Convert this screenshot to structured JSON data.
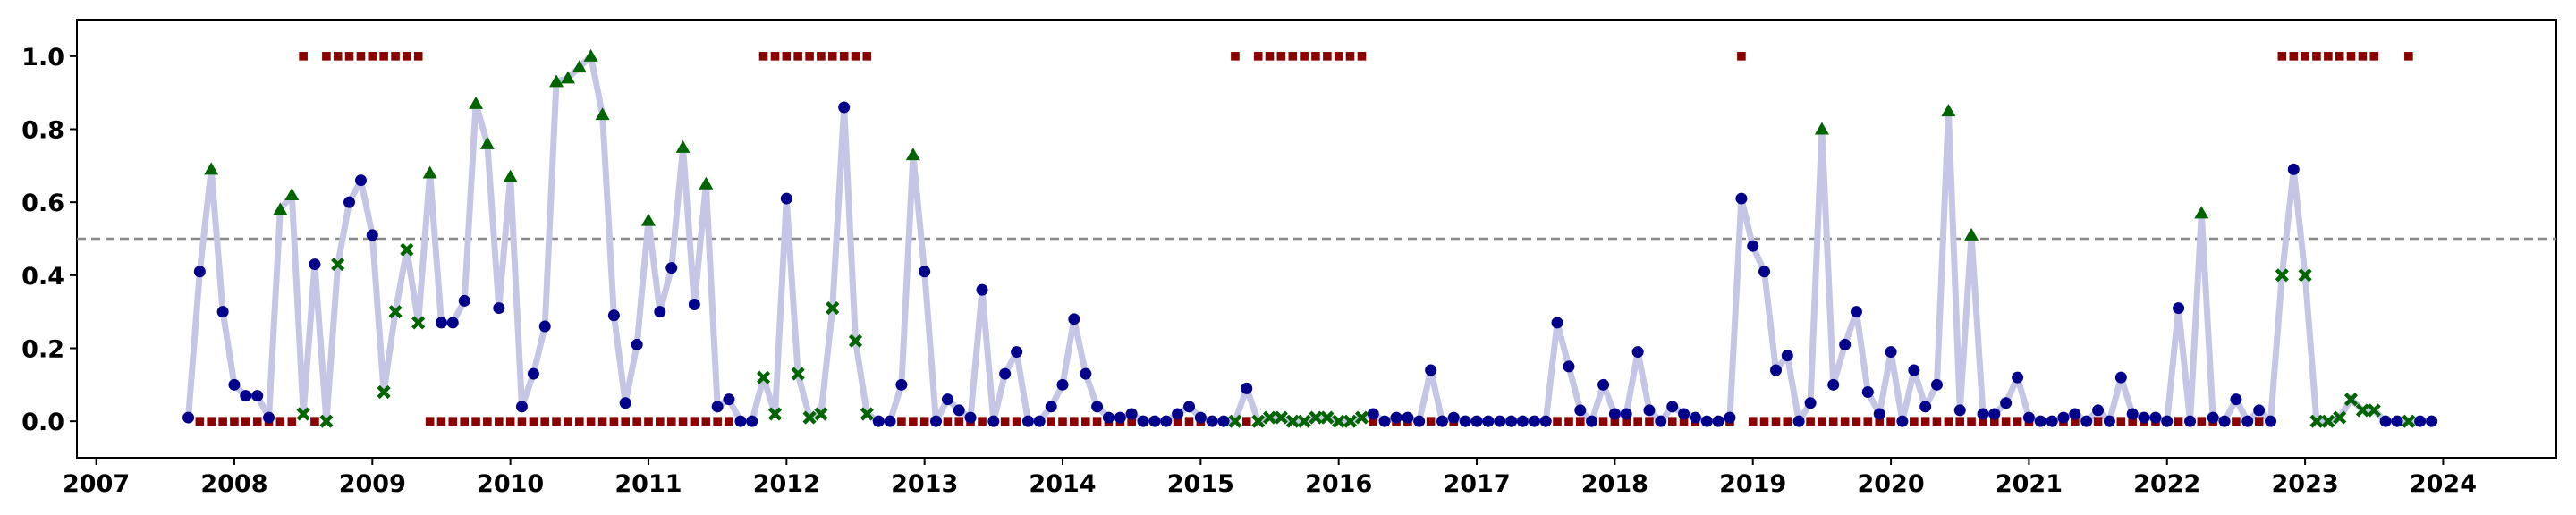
{
  "chart_data": {
    "type": "line",
    "x": [
      2007.667,
      2007.75,
      2007.833,
      2007.917,
      2008.0,
      2008.083,
      2008.167,
      2008.25,
      2008.333,
      2008.417,
      2008.5,
      2008.583,
      2008.667,
      2008.75,
      2008.833,
      2008.917,
      2009.0,
      2009.083,
      2009.167,
      2009.25,
      2009.333,
      2009.417,
      2009.5,
      2009.583,
      2009.667,
      2009.75,
      2009.833,
      2009.917,
      2010.0,
      2010.083,
      2010.167,
      2010.25,
      2010.333,
      2010.417,
      2010.5,
      2010.583,
      2010.667,
      2010.75,
      2010.833,
      2010.917,
      2011.0,
      2011.083,
      2011.167,
      2011.25,
      2011.333,
      2011.417,
      2011.5,
      2011.583,
      2011.667,
      2011.75,
      2011.833,
      2011.917,
      2012.0,
      2012.083,
      2012.167,
      2012.25,
      2012.333,
      2012.417,
      2012.5,
      2012.583,
      2012.667,
      2012.75,
      2012.833,
      2012.917,
      2013.0,
      2013.083,
      2013.167,
      2013.25,
      2013.333,
      2013.417,
      2013.5,
      2013.583,
      2013.667,
      2013.75,
      2013.833,
      2013.917,
      2014.0,
      2014.083,
      2014.167,
      2014.25,
      2014.333,
      2014.417,
      2014.5,
      2014.583,
      2014.667,
      2014.75,
      2014.833,
      2014.917,
      2015.0,
      2015.083,
      2015.167,
      2015.25,
      2015.333,
      2015.417,
      2015.5,
      2015.583,
      2015.667,
      2015.75,
      2015.833,
      2015.917,
      2016.0,
      2016.083,
      2016.167,
      2016.25,
      2016.333,
      2016.417,
      2016.5,
      2016.583,
      2016.667,
      2016.75,
      2016.833,
      2016.917,
      2017.0,
      2017.083,
      2017.167,
      2017.25,
      2017.333,
      2017.417,
      2017.5,
      2017.583,
      2017.667,
      2017.75,
      2017.833,
      2017.917,
      2018.0,
      2018.083,
      2018.167,
      2018.25,
      2018.333,
      2018.417,
      2018.5,
      2018.583,
      2018.667,
      2018.75,
      2018.833,
      2018.917,
      2019.0,
      2019.083,
      2019.167,
      2019.25,
      2019.333,
      2019.417,
      2019.5,
      2019.583,
      2019.667,
      2019.75,
      2019.833,
      2019.917,
      2020.0,
      2020.083,
      2020.167,
      2020.25,
      2020.333,
      2020.417,
      2020.5,
      2020.583,
      2020.667,
      2020.75,
      2020.833,
      2020.917,
      2021.0,
      2021.083,
      2021.167,
      2021.25,
      2021.333,
      2021.417,
      2021.5,
      2021.583,
      2021.667,
      2021.75,
      2021.833,
      2021.917,
      2022.0,
      2022.083,
      2022.167,
      2022.25,
      2022.333,
      2022.417,
      2022.5,
      2022.583,
      2022.667,
      2022.75,
      2022.833,
      2022.917,
      2023.0,
      2023.083,
      2023.167,
      2023.25,
      2023.333,
      2023.417,
      2023.5,
      2023.583,
      2023.667,
      2023.75,
      2023.833,
      2023.917
    ],
    "series": [
      {
        "color": "#c5c6e6",
        "point_color": "#00008b",
        "miss_color": "#006400",
        "values": [
          0.01,
          0.41,
          0.69,
          0.3,
          0.1,
          0.07,
          0.07,
          0.01,
          0.58,
          0.62,
          0.02,
          0.43,
          0.0,
          0.43,
          0.6,
          0.66,
          0.51,
          0.08,
          0.3,
          0.47,
          0.27,
          0.68,
          0.27,
          0.27,
          0.33,
          0.87,
          0.76,
          0.31,
          0.67,
          0.04,
          0.13,
          0.26,
          0.93,
          0.94,
          0.97,
          1.0,
          0.84,
          0.29,
          0.05,
          0.21,
          0.55,
          0.3,
          0.42,
          0.75,
          0.32,
          0.65,
          0.04,
          0.06,
          0.0,
          0.0,
          0.12,
          0.02,
          0.61,
          0.13,
          0.01,
          0.02,
          0.31,
          0.86,
          0.22,
          0.02,
          0.0,
          0.0,
          0.1,
          0.73,
          0.41,
          0.0,
          0.06,
          0.03,
          0.01,
          0.36,
          0.0,
          0.13,
          0.19,
          0.0,
          0.0,
          0.04,
          0.1,
          0.28,
          0.13,
          0.04,
          0.01,
          0.01,
          0.02,
          0.0,
          0.0,
          0.0,
          0.02,
          0.04,
          0.01,
          0.0,
          0.0,
          0.0,
          0.09,
          0.0,
          0.01,
          0.01,
          0.0,
          0.0,
          0.01,
          0.01,
          0.0,
          0.0,
          0.01,
          0.02,
          0.0,
          0.01,
          0.01,
          0.0,
          0.14,
          0.0,
          0.01,
          0.0,
          0.0,
          0.0,
          0.0,
          0.0,
          0.0,
          0.0,
          0.0,
          0.27,
          0.15,
          0.03,
          0.0,
          0.1,
          0.02,
          0.02,
          0.19,
          0.03,
          0.0,
          0.04,
          0.02,
          0.01,
          0.0,
          0.0,
          0.01,
          0.61,
          0.48,
          0.41,
          0.14,
          0.18,
          0.0,
          0.05,
          0.8,
          0.1,
          0.21,
          0.3,
          0.08,
          0.02,
          0.19,
          0.0,
          0.14,
          0.04,
          0.1,
          0.85,
          0.03,
          0.51,
          0.02,
          0.02,
          0.05,
          0.12,
          0.01,
          0.0,
          0.0,
          0.01,
          0.02,
          0.0,
          0.03,
          0.0,
          0.12,
          0.02,
          0.01,
          0.01,
          0.0,
          0.31,
          0.0,
          0.57,
          0.01,
          0.0,
          0.06,
          0.0,
          0.03,
          0.0,
          0.4,
          0.69,
          0.4,
          0.0,
          0.0,
          0.01,
          0.06,
          0.03,
          0.03,
          0.0,
          0.0,
          0.0,
          0.0,
          0.0
        ]
      },
      {
        "color": "#8b0000",
        "values": [
          null,
          0,
          0,
          0,
          0,
          0,
          0,
          0,
          0,
          0,
          1,
          0,
          1,
          1,
          1,
          1,
          1,
          1,
          1,
          1,
          1,
          0,
          0,
          0,
          0,
          0,
          0,
          0,
          0,
          0,
          0,
          0,
          0,
          0,
          0,
          0,
          0,
          0,
          0,
          0,
          0,
          0,
          0,
          0,
          0,
          0,
          0,
          0,
          0,
          0,
          1,
          1,
          1,
          1,
          1,
          1,
          1,
          1,
          1,
          1,
          0,
          0,
          0,
          0,
          0,
          0,
          0,
          0,
          0,
          0,
          0,
          0,
          0,
          0,
          0,
          0,
          0,
          0,
          0,
          0,
          0,
          0,
          0,
          0,
          0,
          0,
          0,
          0,
          0,
          0,
          0,
          1,
          0,
          1,
          1,
          1,
          1,
          1,
          1,
          1,
          1,
          1,
          1,
          0,
          0,
          0,
          0,
          0,
          0,
          0,
          0,
          0,
          0,
          0,
          0,
          0,
          0,
          0,
          0,
          0,
          0,
          0,
          0,
          0,
          0,
          0,
          0,
          0,
          0,
          0,
          0,
          0,
          0,
          0,
          0,
          1,
          0,
          0,
          0,
          0,
          0,
          0,
          0,
          0,
          0,
          0,
          0,
          0,
          0,
          0,
          0,
          0,
          0,
          0,
          0,
          0,
          0,
          0,
          0,
          0,
          0,
          0,
          0,
          0,
          0,
          0,
          0,
          0,
          0,
          0,
          0,
          0,
          0,
          0,
          0,
          0,
          0,
          0,
          0,
          0,
          0,
          0,
          1,
          1,
          1,
          1,
          1,
          1,
          1,
          1,
          1,
          null,
          null,
          1,
          null,
          null
        ]
      }
    ],
    "threshold": 0.5,
    "threshold_color": "#888888",
    "xlim": [
      2006.86,
      2024.82
    ],
    "ylim": [
      -0.1,
      1.1
    ],
    "xticks": [
      2007,
      2008,
      2009,
      2010,
      2011,
      2012,
      2013,
      2014,
      2015,
      2016,
      2017,
      2018,
      2019,
      2020,
      2021,
      2022,
      2023,
      2024
    ],
    "yticks": [
      {
        "value": 0,
        "label": "0.0"
      },
      {
        "value": 0.2,
        "label": "0.2"
      },
      {
        "value": 0.4,
        "label": "0.4"
      },
      {
        "value": 0.6,
        "label": "0.6"
      },
      {
        "value": 0.8,
        "label": "0.8"
      },
      {
        "value": 1,
        "label": "1.0"
      }
    ]
  }
}
